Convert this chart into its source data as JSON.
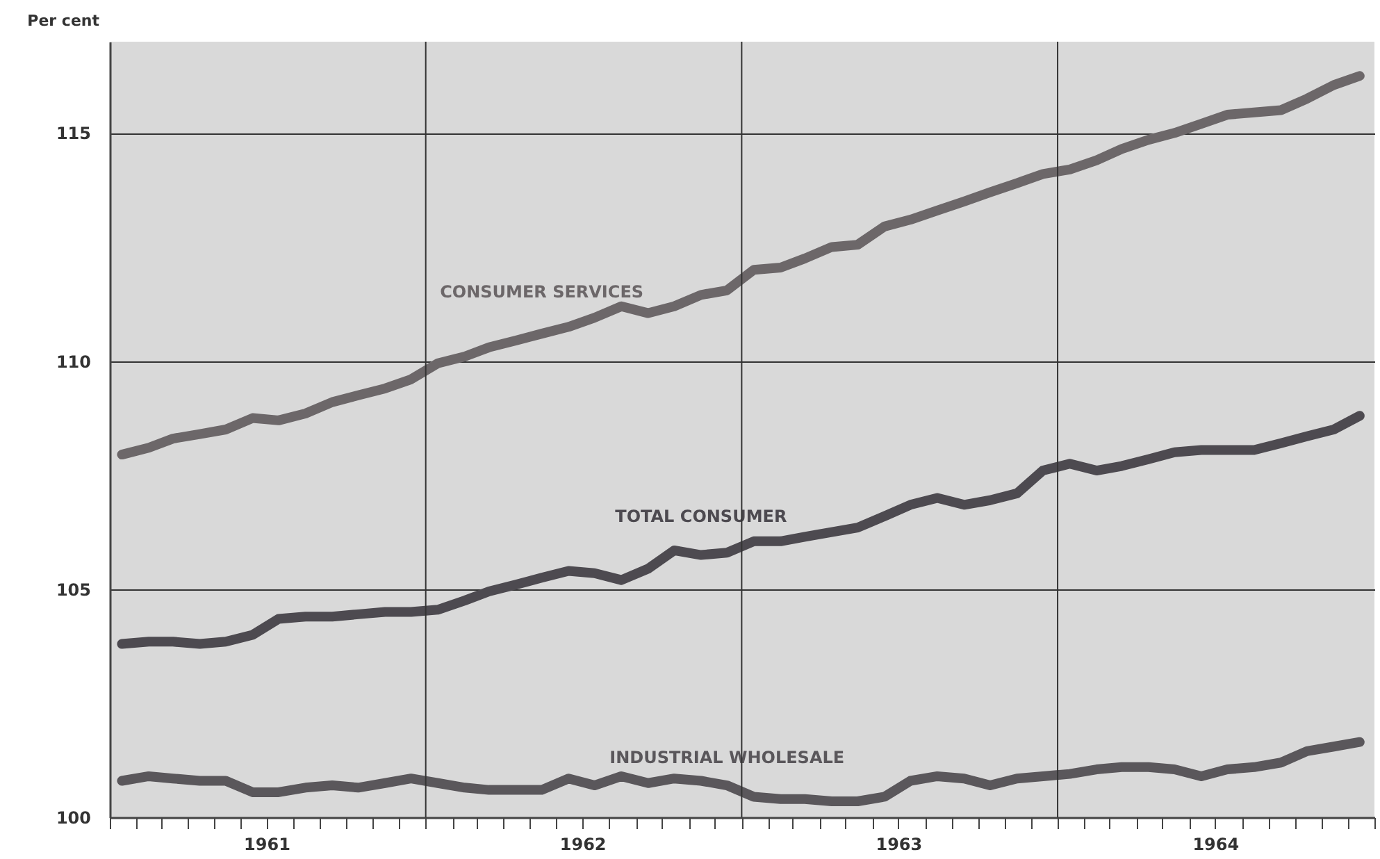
{
  "chart_data": {
    "type": "line",
    "ylabel": "Per cent",
    "x": [
      "1961-01-15",
      "1961-02-15",
      "1961-03-15",
      "1961-04-15",
      "1961-05-15",
      "1961-06-15",
      "1961-07-15",
      "1961-08-15",
      "1961-09-15",
      "1961-10-15",
      "1961-11-15",
      "1961-12-15",
      "1962-01-15",
      "1962-02-15",
      "1962-03-15",
      "1962-04-15",
      "1962-05-15",
      "1962-06-15",
      "1962-07-15",
      "1962-08-15",
      "1962-09-15",
      "1962-10-15",
      "1962-11-15",
      "1962-12-15",
      "1963-01-15",
      "1963-02-15",
      "1963-03-15",
      "1963-04-15",
      "1963-05-15",
      "1963-06-15",
      "1963-07-15",
      "1963-08-15",
      "1963-09-15",
      "1963-10-15",
      "1963-11-15",
      "1963-12-15",
      "1964-01-15",
      "1964-02-15",
      "1964-03-15",
      "1964-04-15",
      "1964-05-15",
      "1964-06-15",
      "1964-07-15",
      "1964-08-15",
      "1964-09-15",
      "1964-10-15",
      "1964-11-15",
      "1964-12-15"
    ],
    "series": [
      {
        "name": "CONSUMER SERVICES",
        "color": "#6c6769",
        "values": [
          107.95,
          108.1,
          108.3,
          108.4,
          108.5,
          108.75,
          108.7,
          108.85,
          109.1,
          109.25,
          109.4,
          109.6,
          109.95,
          110.1,
          110.3,
          110.45,
          110.6,
          110.75,
          110.95,
          111.2,
          111.05,
          111.2,
          111.45,
          111.55,
          112.0,
          112.05,
          112.25,
          112.5,
          112.55,
          112.95,
          113.1,
          113.3,
          113.5,
          113.7,
          113.9,
          114.1,
          114.2,
          114.4,
          114.65,
          114.85,
          115.0,
          115.2,
          115.4,
          115.45,
          115.5,
          115.75,
          116.05,
          116.25
        ]
      },
      {
        "name": "TOTAL CONSUMER",
        "color": "#4d4a50",
        "values": [
          103.8,
          103.85,
          103.85,
          103.8,
          103.85,
          104.0,
          104.35,
          104.4,
          104.4,
          104.45,
          104.5,
          104.5,
          104.55,
          104.75,
          104.95,
          105.1,
          105.25,
          105.4,
          105.35,
          105.2,
          105.45,
          105.85,
          105.75,
          105.8,
          106.05,
          106.05,
          106.15,
          106.25,
          106.35,
          106.6,
          106.85,
          107.0,
          106.85,
          106.95,
          107.1,
          107.6,
          107.75,
          107.6,
          107.7,
          107.85,
          108.0,
          108.05,
          108.05,
          108.05,
          108.2,
          108.35,
          108.5,
          108.8
        ]
      },
      {
        "name": "INDUSTRIAL WHOLESALE",
        "color": "#5a575b",
        "values": [
          100.8,
          100.9,
          100.85,
          100.8,
          100.8,
          100.55,
          100.55,
          100.65,
          100.7,
          100.65,
          100.75,
          100.85,
          100.75,
          100.65,
          100.6,
          100.6,
          100.6,
          100.85,
          100.7,
          100.9,
          100.75,
          100.85,
          100.8,
          100.7,
          100.45,
          100.4,
          100.4,
          100.35,
          100.35,
          100.45,
          100.8,
          100.9,
          100.85,
          100.7,
          100.85,
          100.9,
          100.95,
          101.05,
          101.1,
          101.1,
          101.05,
          100.9,
          101.05,
          101.1,
          101.2,
          101.45,
          101.55,
          101.65
        ]
      }
    ],
    "xlim": [
      "1961-01-01",
      "1965-01-01"
    ],
    "xticks": [
      {
        "value": "1961-01-01",
        "label": null
      },
      {
        "value": "1961-02-01",
        "label": null
      },
      {
        "value": "1961-03-01",
        "label": null
      },
      {
        "value": "1961-04-01",
        "label": null
      },
      {
        "value": "1961-05-01",
        "label": null
      },
      {
        "value": "1961-06-01",
        "label": null
      },
      {
        "value": "1961-07-01",
        "label": "1961"
      },
      {
        "value": "1961-08-01",
        "label": null
      },
      {
        "value": "1961-09-01",
        "label": null
      },
      {
        "value": "1961-10-01",
        "label": null
      },
      {
        "value": "1961-11-01",
        "label": null
      },
      {
        "value": "1961-12-01",
        "label": null
      },
      {
        "value": "1962-01-01",
        "label": null
      },
      {
        "value": "1962-02-01",
        "label": null
      },
      {
        "value": "1962-03-01",
        "label": null
      },
      {
        "value": "1962-04-01",
        "label": null
      },
      {
        "value": "1962-05-01",
        "label": null
      },
      {
        "value": "1962-06-01",
        "label": null
      },
      {
        "value": "1962-07-01",
        "label": "1962"
      },
      {
        "value": "1962-08-01",
        "label": null
      },
      {
        "value": "1962-09-01",
        "label": null
      },
      {
        "value": "1962-10-01",
        "label": null
      },
      {
        "value": "1962-11-01",
        "label": null
      },
      {
        "value": "1962-12-01",
        "label": null
      },
      {
        "value": "1963-01-01",
        "label": null
      },
      {
        "value": "1963-02-01",
        "label": null
      },
      {
        "value": "1963-03-01",
        "label": null
      },
      {
        "value": "1963-04-01",
        "label": null
      },
      {
        "value": "1963-05-01",
        "label": null
      },
      {
        "value": "1963-06-01",
        "label": null
      },
      {
        "value": "1963-07-01",
        "label": "1963"
      },
      {
        "value": "1963-08-01",
        "label": null
      },
      {
        "value": "1963-09-01",
        "label": null
      },
      {
        "value": "1963-10-01",
        "label": null
      },
      {
        "value": "1963-11-01",
        "label": null
      },
      {
        "value": "1963-12-01",
        "label": null
      },
      {
        "value": "1964-01-01",
        "label": null
      },
      {
        "value": "1964-02-01",
        "label": null
      },
      {
        "value": "1964-03-01",
        "label": null
      },
      {
        "value": "1964-04-01",
        "label": null
      },
      {
        "value": "1964-05-01",
        "label": null
      },
      {
        "value": "1964-06-01",
        "label": null
      },
      {
        "value": "1964-07-01",
        "label": "1964"
      },
      {
        "value": "1964-08-01",
        "label": null
      },
      {
        "value": "1964-09-01",
        "label": null
      },
      {
        "value": "1964-10-01",
        "label": null
      },
      {
        "value": "1964-11-01",
        "label": null
      },
      {
        "value": "1964-12-01",
        "label": null
      },
      {
        "value": "1965-01-01",
        "label": null
      }
    ],
    "ylim": [
      100,
      117
    ],
    "yticks": [
      100,
      105,
      110,
      115
    ],
    "grid": true
  }
}
